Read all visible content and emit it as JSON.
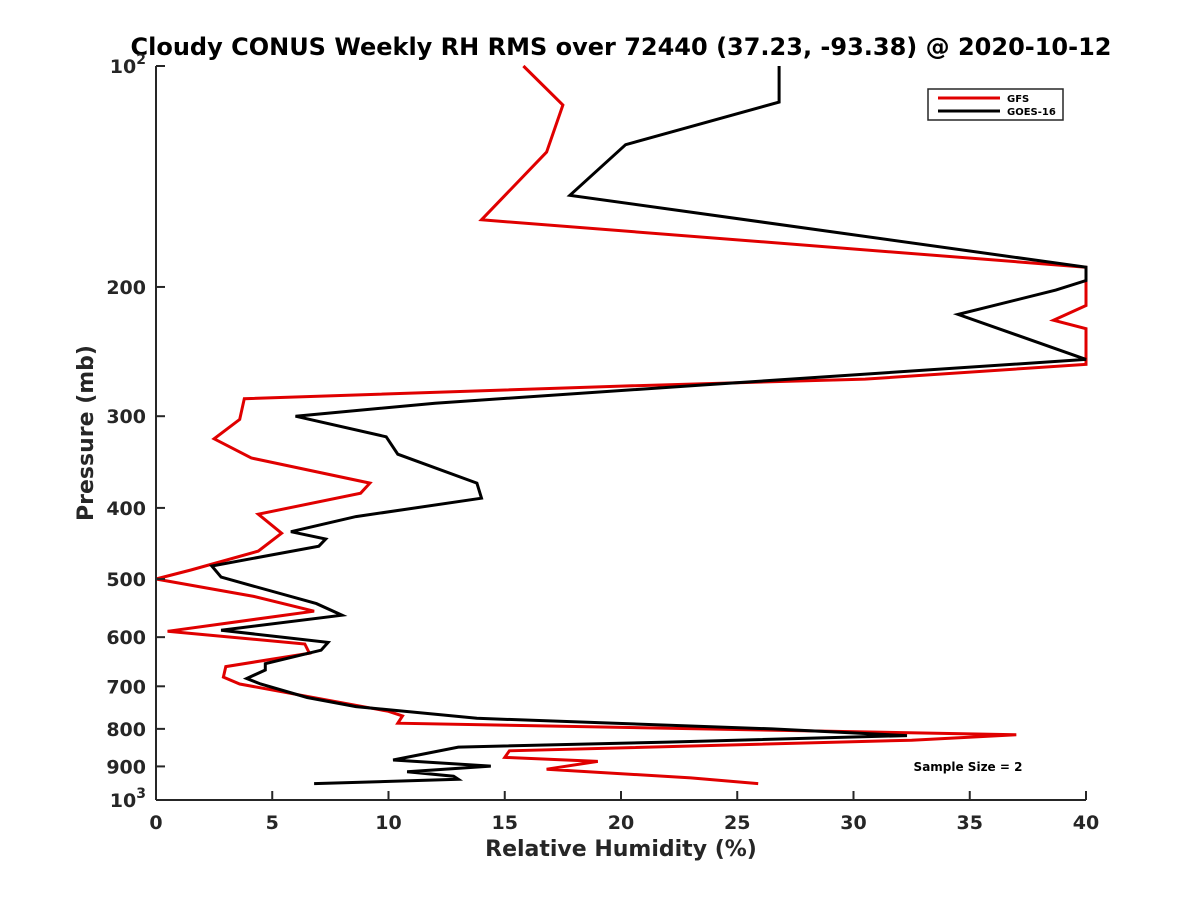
{
  "chart_data": {
    "type": "line",
    "title": "Cloudy CONUS Weekly RH RMS over 72440 (37.23, -93.38) @ 2020-10-12",
    "xlabel": "Relative Humidity (%)",
    "ylabel": "Pressure (mb)",
    "xlim": [
      0,
      40
    ],
    "ylim": [
      100,
      1000
    ],
    "yscale": "log",
    "y_reversed": true,
    "x_ticks": [
      0,
      5,
      10,
      15,
      20,
      25,
      30,
      35,
      40
    ],
    "x_tick_labels": [
      "0",
      "5",
      "10",
      "15",
      "20",
      "25",
      "30",
      "35",
      "40"
    ],
    "y_ticks": [
      100,
      200,
      300,
      400,
      500,
      600,
      700,
      800,
      900,
      1000
    ],
    "y_tick_labels": [
      {
        "base": "10",
        "exp": "2"
      },
      {
        "base": "200",
        "exp": ""
      },
      {
        "base": "300",
        "exp": ""
      },
      {
        "base": "400",
        "exp": ""
      },
      {
        "base": "500",
        "exp": ""
      },
      {
        "base": "600",
        "exp": ""
      },
      {
        "base": "700",
        "exp": ""
      },
      {
        "base": "800",
        "exp": ""
      },
      {
        "base": "900",
        "exp": ""
      },
      {
        "base": "10",
        "exp": "3"
      }
    ],
    "grid": false,
    "legend_position": "top-right",
    "annotation": "Sample Size = 2",
    "series": [
      {
        "name": "GFS",
        "color": "#e00000",
        "points": [
          [
            15.8,
            100
          ],
          [
            17.5,
            113
          ],
          [
            16.8,
            131
          ],
          [
            14.0,
            162
          ],
          [
            40.0,
            188
          ],
          [
            40.0,
            212
          ],
          [
            38.6,
            222
          ],
          [
            40.0,
            228
          ],
          [
            40.0,
            255
          ],
          [
            30.5,
            267
          ],
          [
            20.0,
            273
          ],
          [
            3.8,
            284
          ],
          [
            3.6,
            303
          ],
          [
            2.5,
            322
          ],
          [
            4.1,
            342
          ],
          [
            9.2,
            370
          ],
          [
            8.8,
            382
          ],
          [
            4.4,
            408
          ],
          [
            5.4,
            433
          ],
          [
            4.4,
            458
          ],
          [
            1.5,
            486
          ],
          [
            0.0,
            500
          ],
          [
            4.2,
            528
          ],
          [
            6.8,
            553
          ],
          [
            0.5,
            589
          ],
          [
            6.4,
            613
          ],
          [
            6.6,
            631
          ],
          [
            3.0,
            658
          ],
          [
            2.9,
            680
          ],
          [
            3.6,
            695
          ],
          [
            10.0,
            757
          ],
          [
            10.6,
            768
          ],
          [
            10.4,
            786
          ],
          [
            37.0,
            815
          ],
          [
            32.5,
            829
          ],
          [
            15.2,
            857
          ],
          [
            15.0,
            875
          ],
          [
            19.0,
            886
          ],
          [
            16.8,
            908
          ],
          [
            23.0,
            933
          ],
          [
            25.9,
            950
          ]
        ]
      },
      {
        "name": "GOES-16",
        "color": "#000000",
        "points": [
          [
            26.8,
            100
          ],
          [
            26.8,
            112
          ],
          [
            20.2,
            128
          ],
          [
            17.8,
            150
          ],
          [
            40.0,
            188
          ],
          [
            40.0,
            196
          ],
          [
            38.7,
            202
          ],
          [
            34.5,
            218
          ],
          [
            40.0,
            251
          ],
          [
            23.5,
            272
          ],
          [
            12.0,
            288
          ],
          [
            6.0,
            300
          ],
          [
            9.9,
            320
          ],
          [
            10.4,
            338
          ],
          [
            13.8,
            370
          ],
          [
            14.0,
            388
          ],
          [
            8.6,
            411
          ],
          [
            5.8,
            431
          ],
          [
            7.3,
            441
          ],
          [
            7.0,
            451
          ],
          [
            2.4,
            480
          ],
          [
            2.8,
            497
          ],
          [
            6.9,
            540
          ],
          [
            8.0,
            560
          ],
          [
            2.8,
            587
          ],
          [
            7.4,
            610
          ],
          [
            7.1,
            625
          ],
          [
            4.7,
            652
          ],
          [
            4.7,
            665
          ],
          [
            3.9,
            683
          ],
          [
            4.5,
            695
          ],
          [
            6.5,
            725
          ],
          [
            8.6,
            746
          ],
          [
            13.8,
            774
          ],
          [
            26.5,
            800
          ],
          [
            32.3,
            817
          ],
          [
            22.0,
            834
          ],
          [
            13.0,
            847
          ],
          [
            10.2,
            882
          ],
          [
            14.4,
            899
          ],
          [
            10.8,
            915
          ],
          [
            12.8,
            928
          ],
          [
            13.0,
            937
          ],
          [
            6.8,
            950
          ]
        ]
      }
    ]
  }
}
